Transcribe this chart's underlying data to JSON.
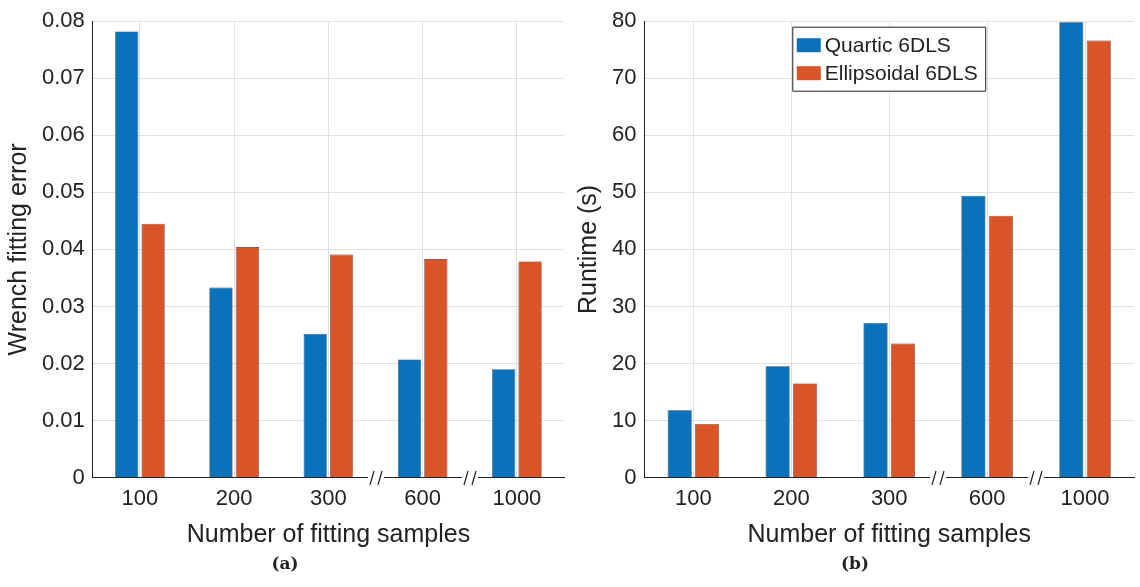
{
  "chart_data": [
    {
      "type": "bar",
      "categories": [
        "100",
        "200",
        "300",
        "600",
        "1000"
      ],
      "xlabel": "Number of fitting samples",
      "ylabel": "Wrench fitting error",
      "annotations": [
        "(a)"
      ],
      "series": [
        {
          "color": "#0a72ba",
          "values": [
            0.0782,
            0.0333,
            0.0252,
            0.0207,
            0.019
          ]
        },
        {
          "color": "#d95428",
          "values": [
            0.0445,
            0.0404,
            0.0391,
            0.0383,
            0.0379
          ]
        }
      ],
      "ylim": [
        0,
        0.08
      ],
      "yticks": [
        0,
        0.01,
        0.02,
        0.03,
        0.04,
        0.05,
        0.06,
        0.07,
        0.08
      ],
      "grid": true,
      "legend": false
    },
    {
      "type": "bar",
      "categories": [
        "100",
        "200",
        "300",
        "600",
        "1000"
      ],
      "xlabel": "Number of fitting samples",
      "ylabel": "Runtime (s)",
      "annotations": [
        "(b)"
      ],
      "series": [
        {
          "name": "Quartic 6DLS",
          "color": "#0a72ba",
          "values": [
            11.8,
            19.5,
            27.1,
            49.4,
            79.8
          ]
        },
        {
          "name": "Ellipsoidal 6DLS",
          "color": "#d95428",
          "values": [
            9.4,
            16.5,
            23.5,
            45.9,
            76.6
          ]
        }
      ],
      "ylim": [
        0,
        80
      ],
      "yticks": [
        0,
        10,
        20,
        30,
        40,
        50,
        60,
        70,
        80
      ],
      "grid": true,
      "legend": "top"
    }
  ]
}
